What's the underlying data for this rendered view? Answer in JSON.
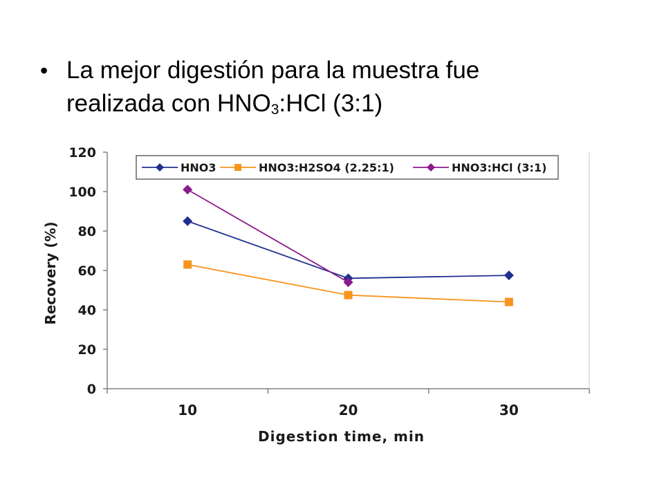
{
  "slide": {
    "bullet_symbol": "•",
    "text_line1": "La mejor digestión para la muestra fue",
    "text_line2_prefix": "realizada con  HNO",
    "text_sub": "3",
    "text_line2_suffix": ":HCl (3:1)"
  },
  "chart_data": {
    "type": "line",
    "categories": [
      "10",
      "20",
      "30"
    ],
    "x": [
      10,
      20,
      30
    ],
    "xlabel": "Digestion time, min",
    "ylabel": "Recovery (%)",
    "ylim": [
      0,
      120
    ],
    "yticks": [
      "0",
      "20",
      "40",
      "60",
      "80",
      "100",
      "120"
    ],
    "grid": false,
    "legend_position": "top",
    "series": [
      {
        "name": "HNO3",
        "values": [
          85,
          56,
          57.5
        ],
        "color": "#1f2f8f",
        "marker": "diamond"
      },
      {
        "name": "HNO3:H2SO4 (2.25:1)",
        "values": [
          63,
          47.5,
          44
        ],
        "color": "#f7941d",
        "marker": "square"
      },
      {
        "name": "HNO3:HCl (3:1)",
        "values": [
          101,
          54,
          null
        ],
        "color": "#8b1a8b",
        "marker": "diamond"
      }
    ]
  }
}
